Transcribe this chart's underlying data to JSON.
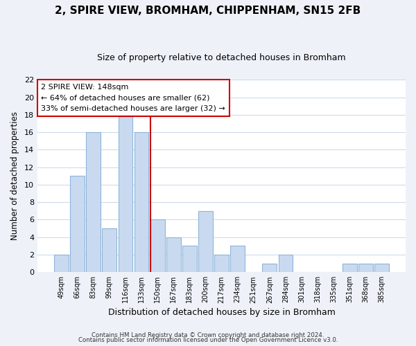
{
  "title": "2, SPIRE VIEW, BROMHAM, CHIPPENHAM, SN15 2FB",
  "subtitle": "Size of property relative to detached houses in Bromham",
  "xlabel": "Distribution of detached houses by size in Bromham",
  "ylabel": "Number of detached properties",
  "bar_labels": [
    "49sqm",
    "66sqm",
    "83sqm",
    "99sqm",
    "116sqm",
    "133sqm",
    "150sqm",
    "167sqm",
    "183sqm",
    "200sqm",
    "217sqm",
    "234sqm",
    "251sqm",
    "267sqm",
    "284sqm",
    "301sqm",
    "318sqm",
    "335sqm",
    "351sqm",
    "368sqm",
    "385sqm"
  ],
  "bar_values": [
    2,
    11,
    16,
    5,
    18,
    16,
    6,
    4,
    3,
    7,
    2,
    3,
    0,
    1,
    2,
    0,
    0,
    0,
    1,
    1,
    1
  ],
  "bar_color": "#c9daf0",
  "bar_edge_color": "#8eb4d8",
  "vline_color": "#cc0000",
  "annotation_title": "2 SPIRE VIEW: 148sqm",
  "annotation_line1": "← 64% of detached houses are smaller (62)",
  "annotation_line2": "33% of semi-detached houses are larger (32) →",
  "annotation_box_color": "#ffffff",
  "annotation_box_edge": "#cc0000",
  "ylim": [
    0,
    22
  ],
  "yticks": [
    0,
    2,
    4,
    6,
    8,
    10,
    12,
    14,
    16,
    18,
    20,
    22
  ],
  "footer1": "Contains HM Land Registry data © Crown copyright and database right 2024.",
  "footer2": "Contains public sector information licensed under the Open Government Licence v3.0.",
  "bg_color": "#eef2f8",
  "plot_bg_color": "#ffffff",
  "grid_color": "#c8d8ea"
}
